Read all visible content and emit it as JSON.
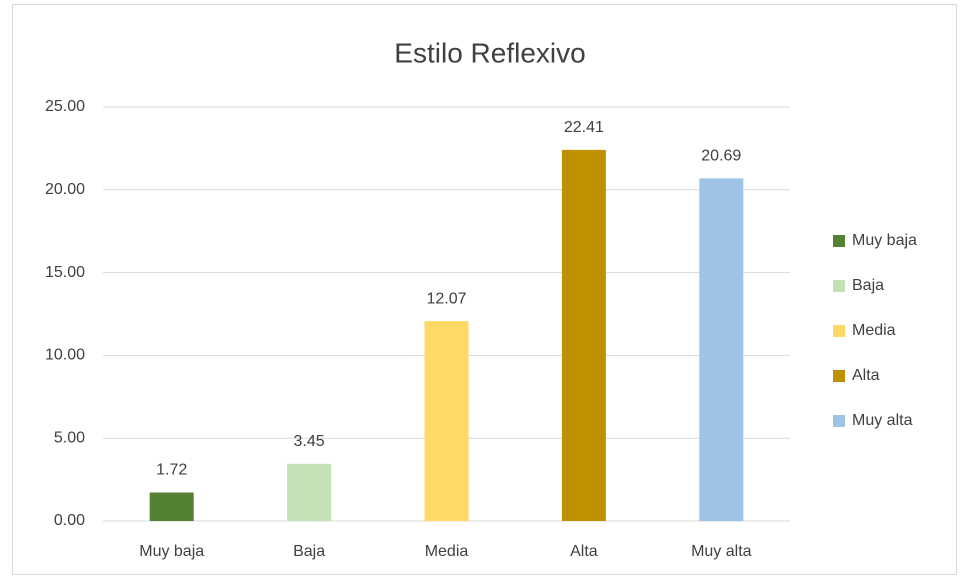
{
  "chart_data": {
    "type": "bar",
    "title": "Estilo Reflexivo",
    "categories": [
      "Muy baja",
      "Baja",
      "Media",
      "Alta",
      "Muy alta"
    ],
    "values": [
      1.72,
      3.45,
      12.07,
      22.41,
      20.69
    ],
    "colors": [
      "#548235",
      "#c5e0b4",
      "#ffd966",
      "#bf9000",
      "#9dc3e6"
    ],
    "ylim": [
      0,
      25
    ],
    "yticks": [
      {
        "value": 0,
        "label": "0.00"
      },
      {
        "value": 5,
        "label": "5.00"
      },
      {
        "value": 10,
        "label": "10.00"
      },
      {
        "value": 15,
        "label": "15.00"
      },
      {
        "value": 20,
        "label": "20.00"
      },
      {
        "value": 25,
        "label": "25.00"
      }
    ],
    "grid": true,
    "legend": "right"
  }
}
